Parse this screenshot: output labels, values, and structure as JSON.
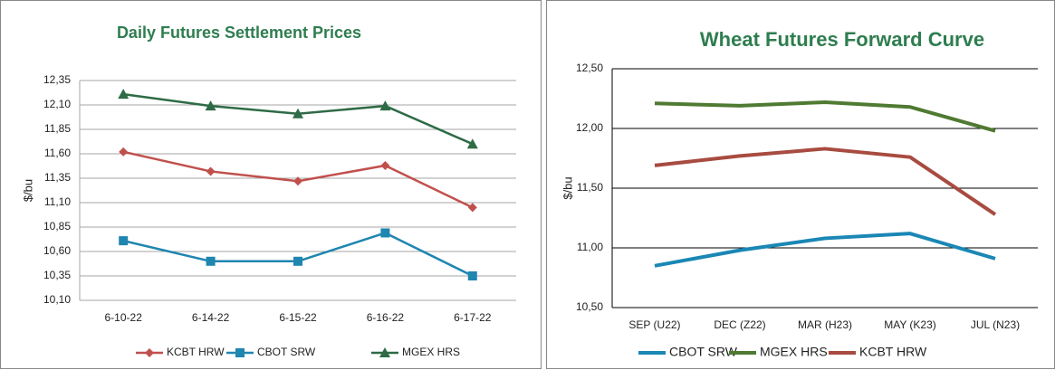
{
  "chart_data": [
    {
      "type": "line",
      "title": "Daily Futures Settlement Prices",
      "y_label": "$/bu",
      "categories": [
        "6-10-22",
        "6-14-22",
        "6-15-22",
        "6-16-22",
        "6-17-22"
      ],
      "series": [
        {
          "name": "KCBT HRW",
          "color": "#c0504d",
          "marker": "diamond",
          "values": [
            11.62,
            11.42,
            11.32,
            11.48,
            11.05
          ]
        },
        {
          "name": "CBOT SRW",
          "color": "#1f86b0",
          "marker": "square",
          "values": [
            10.71,
            10.5,
            10.5,
            10.79,
            10.35
          ]
        },
        {
          "name": "MGEX HRS",
          "color": "#2e6b46",
          "marker": "triangle",
          "values": [
            12.21,
            12.09,
            12.01,
            12.09,
            11.7
          ]
        }
      ],
      "ylim": [
        10.1,
        12.35
      ],
      "yticks": [
        {
          "value": 10.1,
          "label": "10,10"
        },
        {
          "value": 10.35,
          "label": "10,35"
        },
        {
          "value": 10.6,
          "label": "10,60"
        },
        {
          "value": 10.85,
          "label": "10,85"
        },
        {
          "value": 11.1,
          "label": "11,10"
        },
        {
          "value": 11.35,
          "label": "11,35"
        },
        {
          "value": 11.6,
          "label": "11,60"
        },
        {
          "value": 11.85,
          "label": "11,85"
        },
        {
          "value": 12.1,
          "label": "12,10"
        },
        {
          "value": 12.35,
          "label": "12,35"
        }
      ],
      "grid": true,
      "grid_color": "#a6a6a6",
      "legend": "bottom"
    },
    {
      "type": "line",
      "title": "Wheat Futures Forward Curve",
      "y_label": "$/bu",
      "categories": [
        "SEP (U22)",
        "DEC (Z22)",
        "MAR (H23)",
        "MAY (K23)",
        "JUL (N23)"
      ],
      "series": [
        {
          "name": "CBOT SRW",
          "color": "#1a87b5",
          "values": [
            10.85,
            10.98,
            11.08,
            11.12,
            10.91
          ]
        },
        {
          "name": "MGEX HRS",
          "color": "#4f7a32",
          "values": [
            12.21,
            12.19,
            12.22,
            12.18,
            11.98
          ]
        },
        {
          "name": "KCBT HRW",
          "color": "#a84b40",
          "values": [
            11.69,
            11.77,
            11.83,
            11.76,
            11.28
          ]
        }
      ],
      "ylim": [
        10.5,
        12.5
      ],
      "yticks": [
        {
          "value": 10.5,
          "label": "10,50"
        },
        {
          "value": 11.0,
          "label": "11,00"
        },
        {
          "value": 11.5,
          "label": "11,50"
        },
        {
          "value": 12.0,
          "label": "12,00"
        },
        {
          "value": 12.5,
          "label": "12,50"
        }
      ],
      "grid": true,
      "grid_color": "#000000",
      "legend": "bottom"
    }
  ]
}
